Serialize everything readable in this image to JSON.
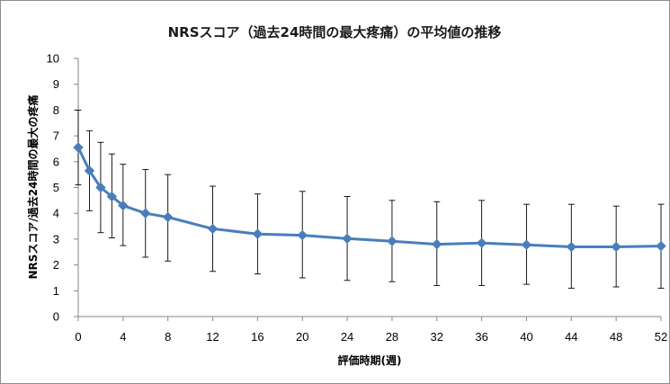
{
  "colors": {
    "series": "#4a7ebb",
    "errorbar": "#000000",
    "axis": "#868686",
    "frame": "#8c8c8c"
  },
  "chart_data": {
    "type": "line",
    "title": "NRSスコア（過去24時間の最大疼痛）の平均値の推移",
    "xlabel": "評価時期(週)",
    "ylabel": "NRSスコア/過去24時間の最大の疼痛",
    "xlim": [
      0,
      52
    ],
    "ylim": [
      0,
      10
    ],
    "x_ticks": [
      0,
      4,
      8,
      12,
      16,
      20,
      24,
      28,
      32,
      36,
      40,
      44,
      48,
      52
    ],
    "y_ticks": [
      0,
      1,
      2,
      3,
      4,
      5,
      6,
      7,
      8,
      9,
      10
    ],
    "grid": false,
    "legend": "none",
    "marker": "diamond",
    "series": [
      {
        "x": [
          0,
          1,
          2,
          3,
          4,
          6,
          8,
          12,
          16,
          20,
          24,
          28,
          32,
          36,
          40,
          44,
          48,
          52
        ],
        "values": [
          6.55,
          5.65,
          5.0,
          4.65,
          4.3,
          4.0,
          3.85,
          3.4,
          3.2,
          3.15,
          3.02,
          2.92,
          2.8,
          2.85,
          2.78,
          2.7,
          2.7,
          2.73
        ],
        "error_low": [
          5.1,
          4.1,
          3.25,
          3.05,
          2.75,
          2.3,
          2.15,
          1.75,
          1.65,
          1.5,
          1.4,
          1.35,
          1.2,
          1.2,
          1.25,
          1.1,
          1.15,
          1.1
        ],
        "error_high": [
          8.0,
          7.2,
          6.75,
          6.3,
          5.9,
          5.7,
          5.5,
          5.05,
          4.75,
          4.85,
          4.65,
          4.5,
          4.45,
          4.5,
          4.35,
          4.35,
          4.28,
          4.35
        ]
      }
    ]
  }
}
